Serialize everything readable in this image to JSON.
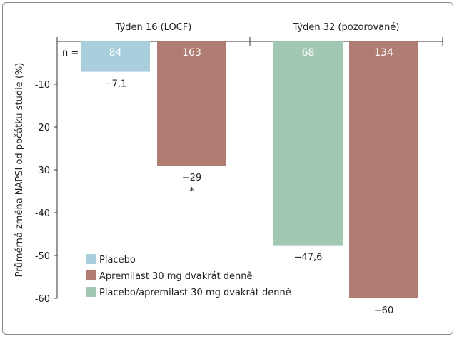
{
  "chart_data": {
    "type": "bar",
    "orientation": "vertical, bars hang down from 0",
    "groups": [
      {
        "label": "Týden 16 (LOCF)",
        "bars": [
          {
            "series": "Placebo",
            "n": "84",
            "value": -7.1,
            "value_label": "−7,1",
            "note": ""
          },
          {
            "series": "Apremilast 30 mg dvakrát denně",
            "n": "163",
            "value": -29,
            "value_label": "−29",
            "note": "*"
          }
        ]
      },
      {
        "label": "Týden 32 (pozorované)",
        "bars": [
          {
            "series": "Placebo/apremilast 30 mg dvakrát denně",
            "n": "68",
            "value": -47.6,
            "value_label": "−47,6",
            "note": ""
          },
          {
            "series": "Apremilast 30 mg dvakrát denně",
            "n": "134",
            "value": -60,
            "value_label": "−60",
            "note": ""
          }
        ]
      }
    ],
    "n_label": "n =",
    "ylabel": "Průměrná změna NAPSI od počátku studie (%)",
    "ylim": [
      -60,
      0
    ],
    "yticks": [
      -10,
      -20,
      -30,
      -40,
      -50,
      -60
    ],
    "ytick_labels": [
      "-10",
      "-20",
      "-30",
      "-40",
      "-50",
      "-60"
    ],
    "legend": [
      {
        "label": "Placebo",
        "color": "#a9cfdc"
      },
      {
        "label": "Apremilast 30 mg dvakrát denně",
        "color": "#b07d72"
      },
      {
        "label": "Placebo/apremilast 30 mg dvakrát denně",
        "color": "#a2c8b3"
      }
    ],
    "legend_position": "bottom-left",
    "colors": {
      "Placebo": "#a9cfdc",
      "Apremilast 30 mg dvakrát denně": "#b07d72",
      "Placebo/apremilast 30 mg dvakrát denně": "#a2c8b3"
    },
    "grid": false
  }
}
